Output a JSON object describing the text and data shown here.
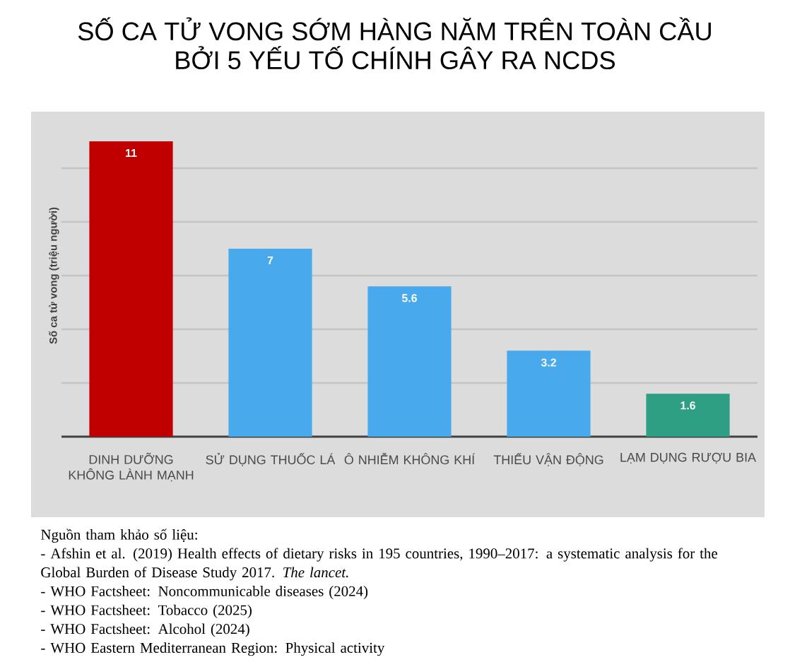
{
  "chart_data": {
    "type": "bar",
    "title": "SỐ CA TỬ VONG SỚM HÀNG NĂM TRÊN TOÀN CẦU BỞI 5 YẾU TỐ CHÍNH GÂY RA NCDS",
    "ylabel": "Số ca tử vong (triệu người)",
    "categories": [
      "DINH DƯỠNG KHÔNG LÀNH MẠNH",
      "SỬ DỤNG THUỐC LÁ",
      "Ô NHIỄM KHÔNG KHÍ",
      "THIẾU VẬN ĐỘNG",
      "LẠM DỤNG RƯỢU BIA"
    ],
    "values": [
      11,
      7,
      5.6,
      3.2,
      1.6
    ],
    "colors": [
      "#c00000",
      "#48aaec",
      "#48aaec",
      "#48aaec",
      "#2f9f83"
    ],
    "ylim": [
      0,
      12
    ],
    "yticks": [
      {
        "value": 2,
        "label": null
      },
      {
        "value": 4,
        "label": null
      },
      {
        "value": 6,
        "label": null
      },
      {
        "value": 8,
        "label": null
      },
      {
        "value": 10,
        "label": null
      }
    ],
    "grid": "y",
    "tick_labels": "x",
    "data_labels": true,
    "annotations": [
      "Nguồn tham khảo số liệu:",
      "- Afshin et al. (2019) Health effects of dietary risks in 195 countries, 1990–2017: a systematic analysis for the Global Burden of Disease Study 2017. *The lancet.*",
      "- WHO Factsheet: Noncommunicable diseases (2024)",
      "- WHO Factsheet: Tobacco (2025)",
      "- WHO Factsheet: Alcohol (2024)",
      "- WHO Eastern Mediterranean Region: Physical activity"
    ]
  }
}
